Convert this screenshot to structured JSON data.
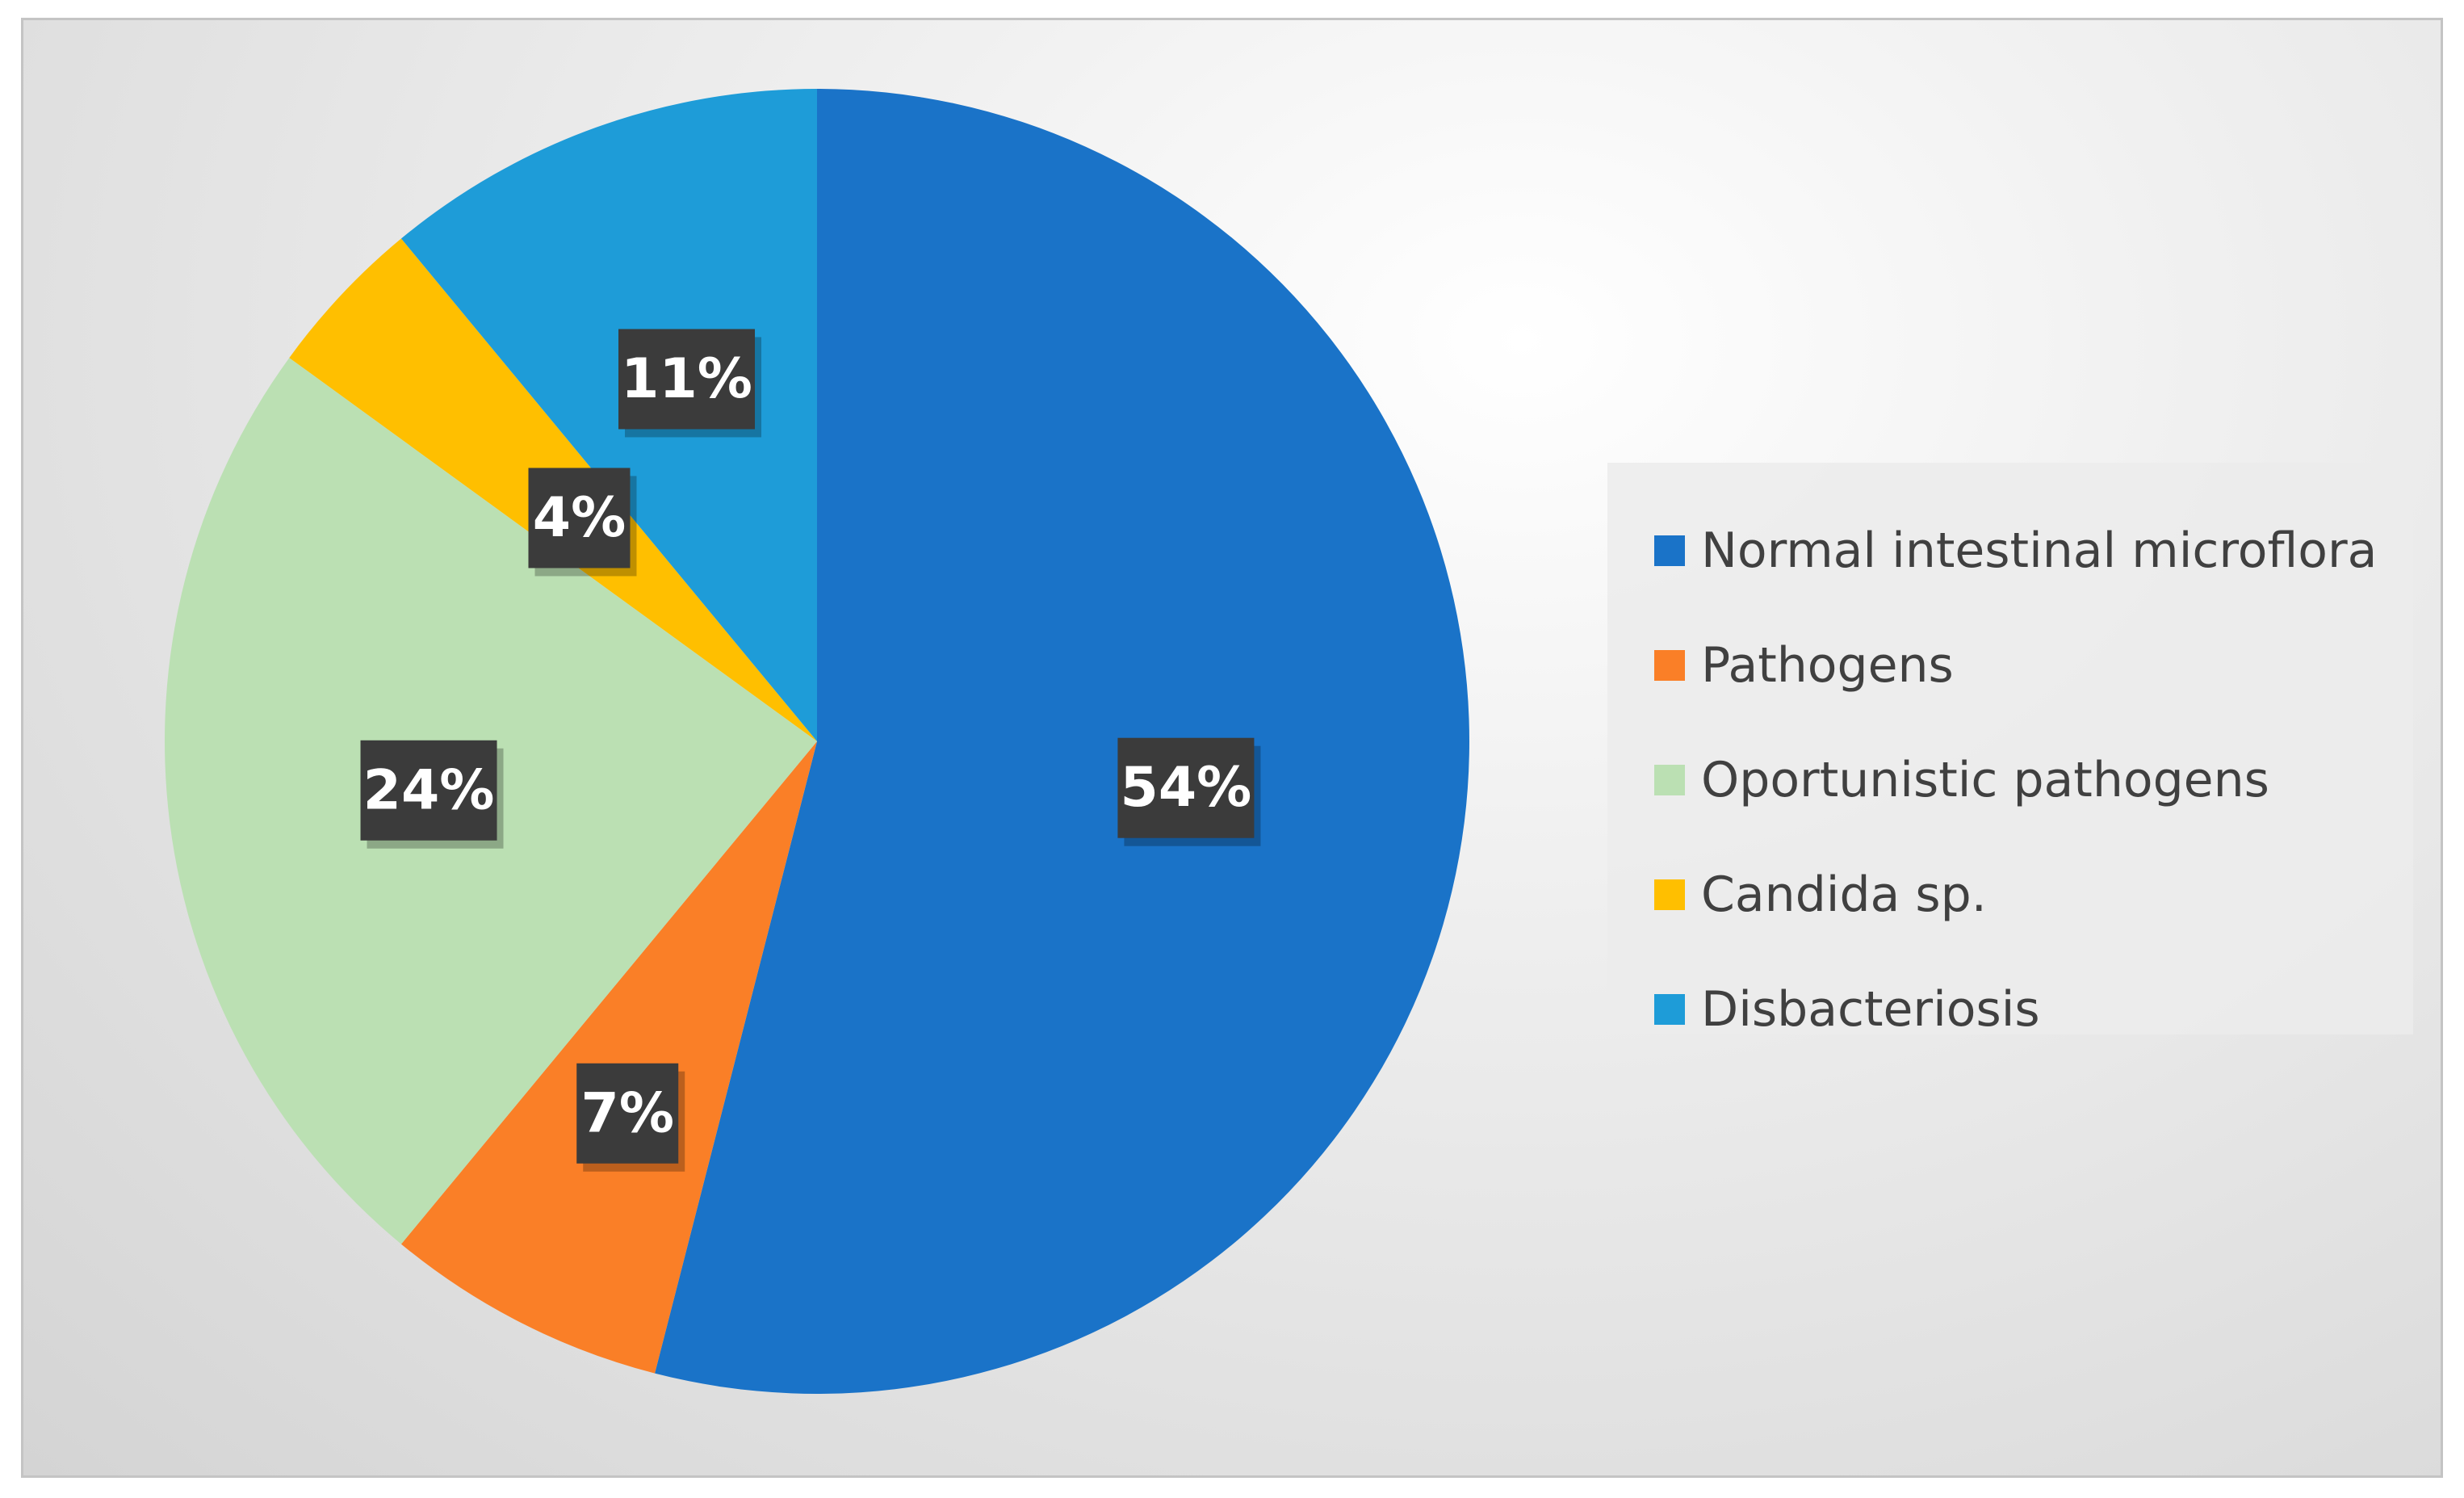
{
  "chart_data": {
    "type": "pie",
    "title": "",
    "categories": [
      "Normal intestinal microflora",
      "Pathogens",
      "Oportunistic pathogens",
      "Candida sp.",
      "Disbacteriosis"
    ],
    "values": [
      54,
      7,
      24,
      4,
      11
    ],
    "data_labels": [
      "54%",
      "7%",
      "24%",
      "4%",
      "11%"
    ],
    "colors": [
      "#1A73C8",
      "#FA7F27",
      "#BBE0B3",
      "#FFBF00",
      "#1E9CD8"
    ],
    "legend_position": "right",
    "start_angle": "12 o'clock",
    "direction": "clockwise"
  }
}
